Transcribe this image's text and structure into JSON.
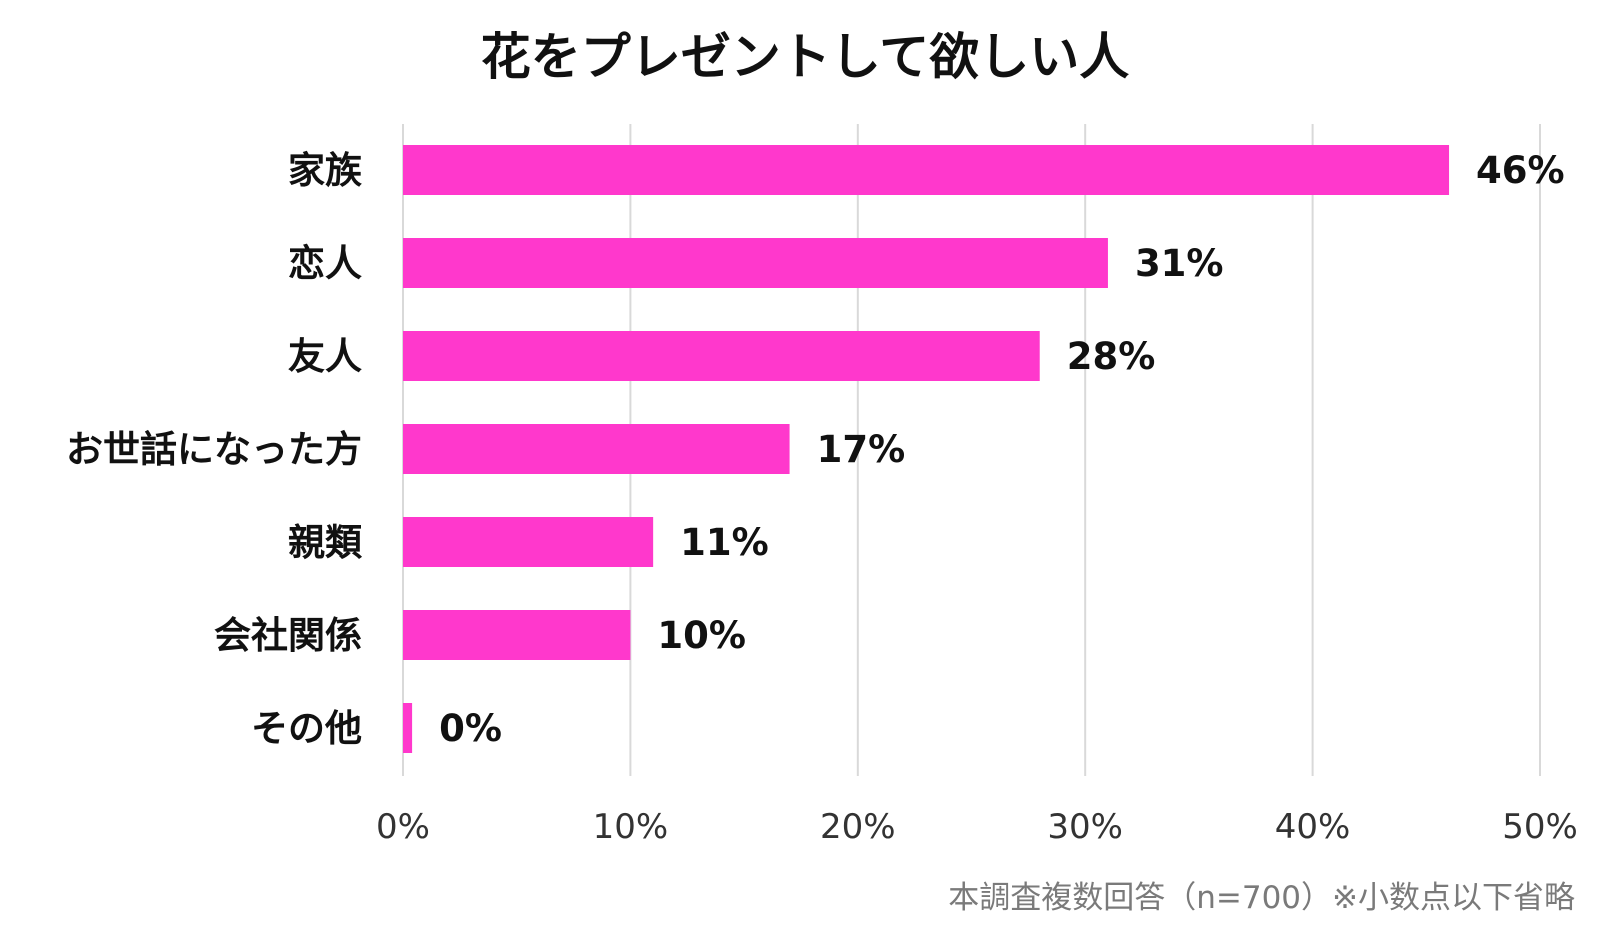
{
  "chart_data": {
    "type": "bar",
    "orientation": "horizontal",
    "title": "花をプレゼントして欲しい人",
    "categories": [
      "家族",
      "恋人",
      "友人",
      "お世話になった方",
      "親類",
      "会社関係",
      "その他"
    ],
    "values": [
      46,
      31,
      28,
      17,
      11,
      10,
      0.4
    ],
    "value_labels": [
      "46%",
      "31%",
      "28%",
      "17%",
      "11%",
      "10%",
      "0%"
    ],
    "xlim": [
      0,
      50
    ],
    "xticks": [
      0,
      10,
      20,
      30,
      40,
      50
    ],
    "xtick_labels": [
      "0%",
      "10%",
      "20%",
      "30%",
      "40%",
      "50%"
    ],
    "grid": "vertical",
    "bar_color": "#ff38cc",
    "note": "本調査複数回答（n=700）※小数点以下省略"
  }
}
